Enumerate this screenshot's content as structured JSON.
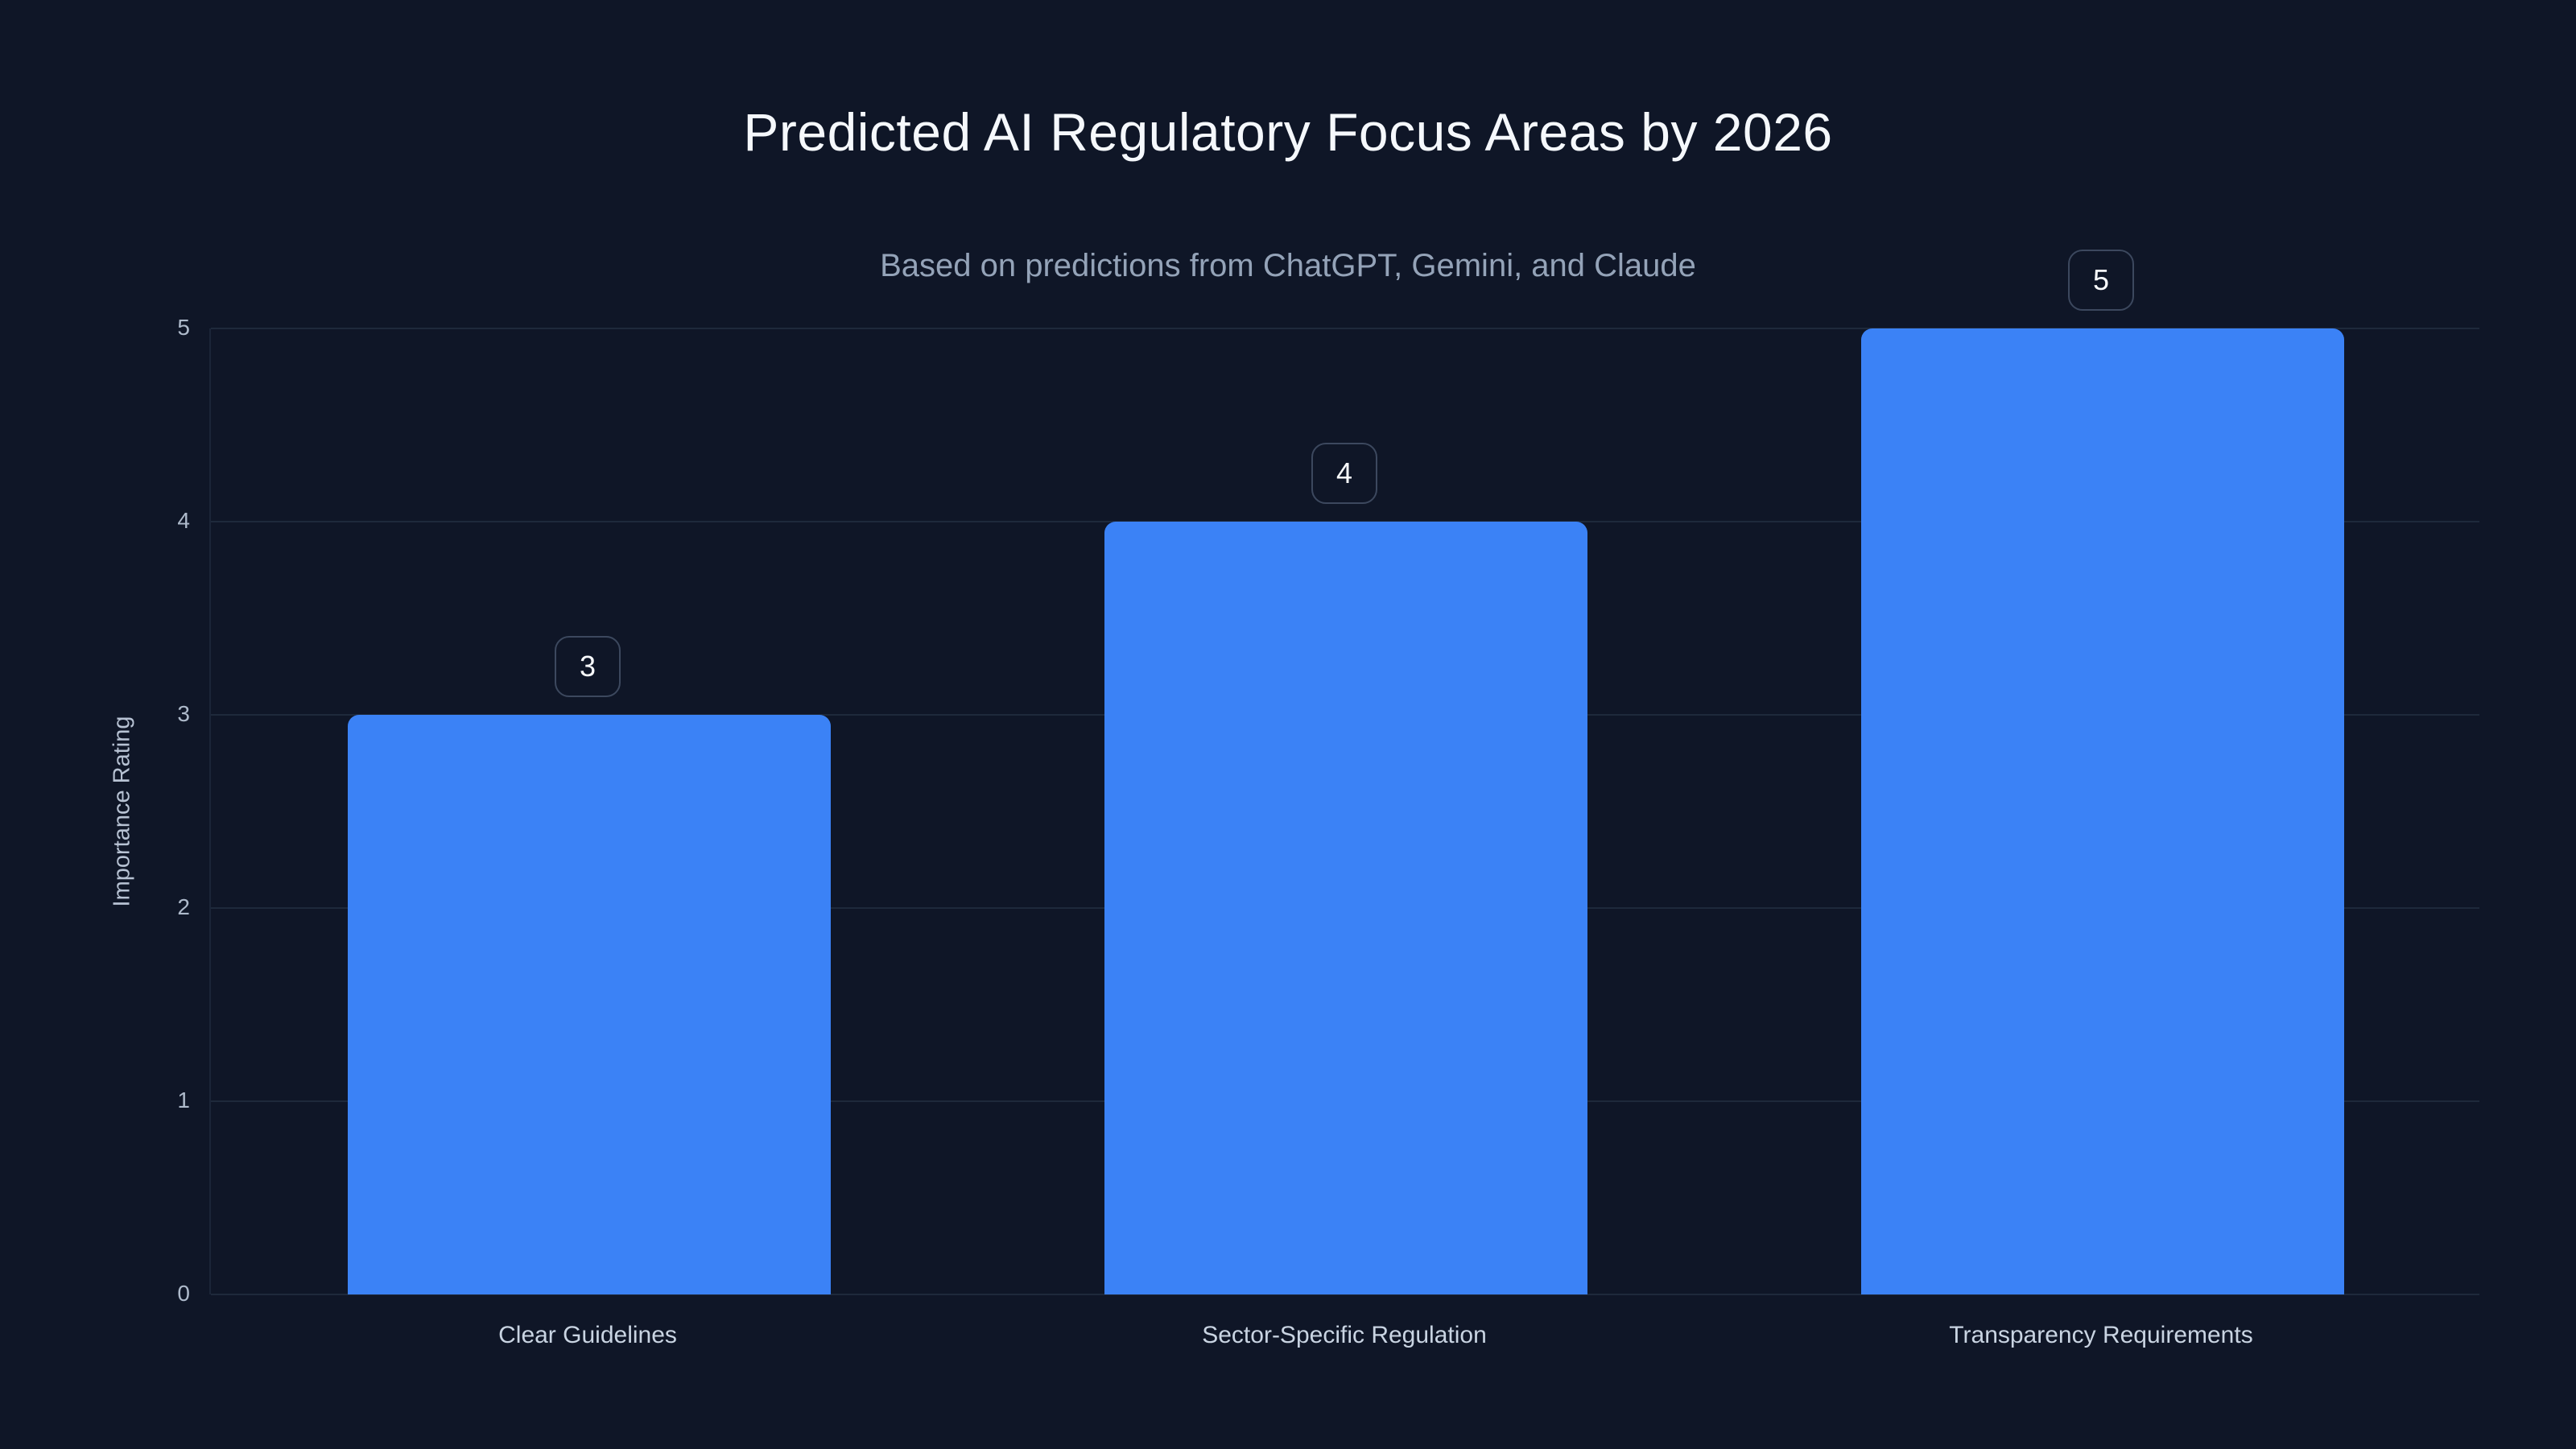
{
  "chart_data": {
    "type": "bar",
    "title": "Predicted AI Regulatory Focus Areas by 2026",
    "subtitle": "Based on predictions from ChatGPT, Gemini, and Claude",
    "categories": [
      "Clear Guidelines",
      "Sector-Specific Regulation",
      "Transparency Requirements"
    ],
    "values": [
      3,
      4,
      5
    ],
    "value_labels": [
      "3",
      "4",
      "5"
    ],
    "xlabel": "",
    "ylabel": "Importance Rating",
    "ylim": [
      0,
      5
    ],
    "yticks": [
      0,
      1,
      2,
      3,
      4,
      5
    ],
    "grid": true,
    "legend": "none",
    "colors": {
      "background": "#0F1627",
      "bar": "#3B82F6",
      "gridline": "#1E293B",
      "axis_line": "#1B2538",
      "title_text": "#F5F8FC",
      "subtitle_text": "#94A3B8",
      "tick_text": "#AEBACB",
      "category_text": "#C9D4E2",
      "badge_border": "#3C485E",
      "badge_text": "#F8FAFC"
    }
  }
}
